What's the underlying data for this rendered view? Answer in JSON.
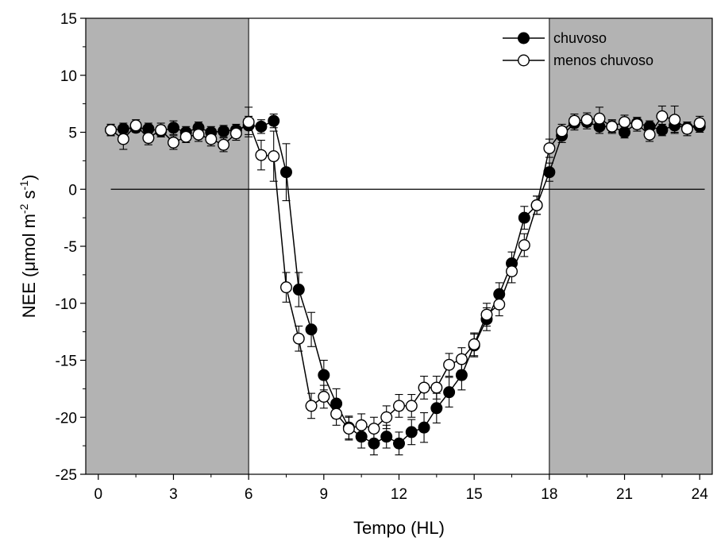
{
  "chart_data": {
    "type": "scatter",
    "xlabel": "Tempo (HL)",
    "ylabel_main": "NEE (μmol m",
    "ylabel_sup1": "-2",
    "ylabel_mid": " s",
    "ylabel_sup2": "-1",
    "ylabel_end": ")",
    "xlim": [
      -0.5,
      24.5
    ],
    "ylim": [
      -25,
      15
    ],
    "xticks": [
      0,
      3,
      6,
      9,
      12,
      15,
      18,
      21,
      24
    ],
    "yticks": [
      -25,
      -20,
      -15,
      -10,
      -5,
      0,
      5,
      10,
      15
    ],
    "night_shading": [
      [
        -0.5,
        6
      ],
      [
        18,
        24.5
      ]
    ],
    "legend_position": "top-right",
    "colors": {
      "night": "#b3b3b3",
      "day": "#ffffff",
      "line": "#000000"
    },
    "series": [
      {
        "name": "chuvoso",
        "marker": "filled-circle",
        "x": [
          0.5,
          1,
          1.5,
          2,
          2.5,
          3,
          3.5,
          4,
          4.5,
          5,
          5.5,
          6,
          6.5,
          7,
          7.5,
          8,
          8.5,
          9,
          9.5,
          10,
          10.5,
          11,
          11.5,
          12,
          12.5,
          13,
          13.5,
          14,
          14.5,
          15,
          15.5,
          16,
          16.5,
          17,
          17.5,
          18,
          18.5,
          19,
          19.5,
          20,
          20.5,
          21,
          21.5,
          22,
          22.5,
          23,
          23.5,
          24
        ],
        "y": [
          5.2,
          5.3,
          5.4,
          5.3,
          5.1,
          5.4,
          5.0,
          5.4,
          5.0,
          5.1,
          5.2,
          5.6,
          5.5,
          6.0,
          1.5,
          -8.8,
          -12.3,
          -16.3,
          -18.8,
          -20.9,
          -21.7,
          -22.3,
          -21.7,
          -22.3,
          -21.3,
          -20.9,
          -19.2,
          -17.8,
          -16.3,
          -13.7,
          -11.4,
          -9.2,
          -6.5,
          -2.5,
          -1.4,
          1.5,
          4.7,
          5.8,
          5.9,
          5.5,
          5.5,
          5.0,
          5.8,
          5.5,
          5.2,
          5.6,
          5.4,
          5.5
        ],
        "err": [
          0.5,
          0.5,
          0.4,
          0.5,
          0.5,
          0.6,
          0.5,
          0.5,
          0.5,
          0.5,
          0.5,
          0.8,
          0.6,
          0.6,
          2.5,
          1.5,
          1.5,
          1.3,
          1.3,
          1.0,
          1.0,
          1.0,
          1.0,
          1.0,
          1.1,
          1.3,
          1.3,
          1.3,
          1.3,
          1.0,
          1.0,
          1.0,
          1.0,
          1.0,
          0.8,
          0.8,
          0.6,
          0.6,
          0.6,
          0.6,
          0.5,
          0.5,
          0.5,
          0.5,
          0.5,
          0.6,
          0.5,
          0.5
        ]
      },
      {
        "name": "menos chuvoso",
        "marker": "open-circle",
        "x": [
          0.5,
          1,
          1.5,
          2,
          2.5,
          3,
          3.5,
          4,
          4.5,
          5,
          5.5,
          6,
          6.5,
          7,
          7.5,
          8,
          8.5,
          9,
          9.5,
          10,
          10.5,
          11,
          11.5,
          12,
          12.5,
          13,
          13.5,
          14,
          14.5,
          15,
          15.5,
          16,
          16.5,
          17,
          17.5,
          18,
          18.5,
          19,
          19.5,
          20,
          20.5,
          21,
          21.5,
          22,
          22.5,
          23,
          23.5,
          24
        ],
        "y": [
          5.2,
          4.4,
          5.6,
          4.5,
          5.2,
          4.1,
          4.6,
          4.8,
          4.4,
          3.9,
          4.9,
          5.9,
          3.0,
          2.9,
          -8.6,
          -13.1,
          -19.0,
          -18.2,
          -19.7,
          -21.0,
          -20.7,
          -21.0,
          -20.0,
          -19.0,
          -19.0,
          -17.4,
          -17.4,
          -15.4,
          -14.9,
          -13.6,
          -11.0,
          -10.1,
          -7.2,
          -4.9,
          -1.4,
          3.6,
          5.1,
          6.0,
          6.1,
          6.2,
          5.5,
          5.9,
          5.7,
          4.8,
          6.4,
          6.1,
          5.3,
          5.8
        ],
        "err": [
          0.5,
          0.9,
          0.5,
          0.6,
          0.6,
          0.6,
          0.5,
          0.6,
          0.6,
          0.6,
          0.6,
          1.3,
          1.3,
          2.2,
          1.3,
          1.1,
          1.1,
          1.0,
          1.0,
          1.0,
          1.0,
          1.0,
          1.0,
          1.0,
          1.0,
          1.0,
          1.0,
          1.0,
          1.0,
          1.0,
          1.0,
          1.0,
          1.0,
          1.0,
          0.8,
          0.8,
          0.6,
          0.6,
          0.6,
          1.0,
          0.6,
          0.6,
          0.6,
          0.6,
          0.9,
          1.2,
          0.6,
          0.6
        ]
      }
    ]
  }
}
